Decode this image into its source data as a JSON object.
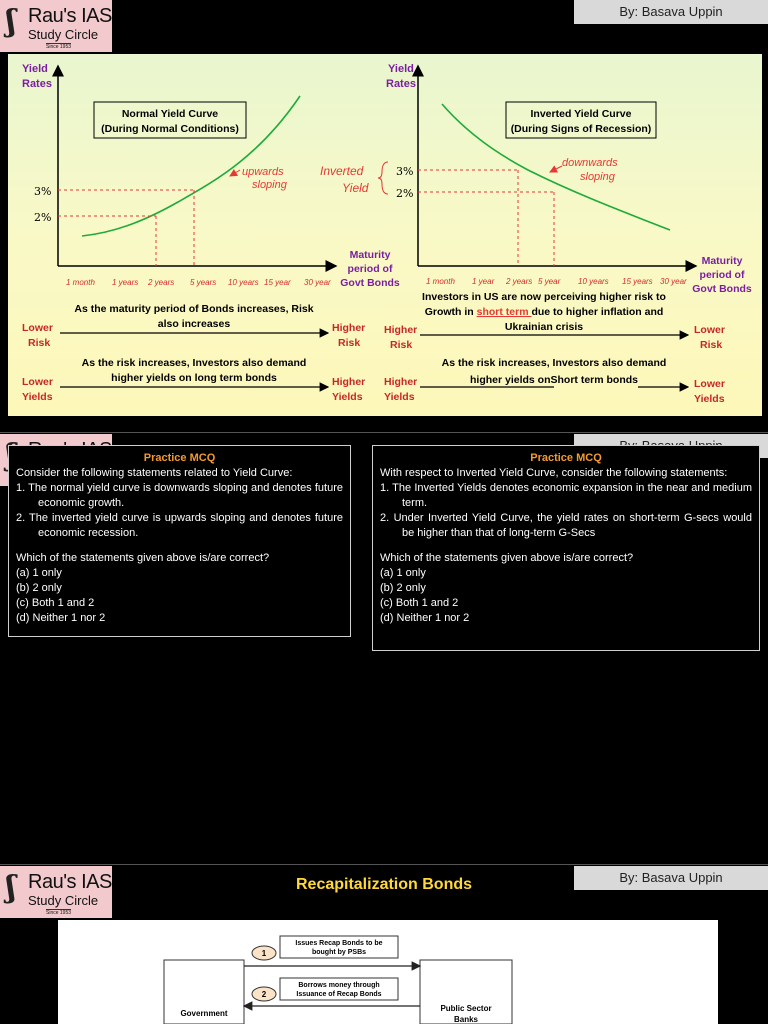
{
  "logo": {
    "mark": "ʃ",
    "name": "Rau's IAS",
    "sub": "Study Circle",
    "since": "Since 1953"
  },
  "author": "By: Basava Uppin",
  "normal_curve": {
    "ylabel_1": "Yield",
    "ylabel_2": "Rates",
    "title_1": "Normal Yield Curve",
    "title_2": "(During Normal Conditions)",
    "annot_1": "upwards",
    "annot_2": "sloping",
    "tick_3": "3%",
    "tick_2": "2%",
    "xticks": [
      "1 month",
      "1 years",
      "2 years",
      "5 years",
      "10 years",
      "15 year",
      "30 year"
    ],
    "xlabel_1": "Maturity",
    "xlabel_2": "period of",
    "xlabel_3": "Govt Bonds",
    "text_1a": "As the maturity period of Bonds increases, Risk",
    "text_1b": "also increases",
    "left_1a": "Lower",
    "left_1b": "Risk",
    "right_1a": "Higher",
    "right_1b": "Risk",
    "text_2a": "As the risk increases, Investors also demand",
    "text_2b": "higher yields on long term bonds",
    "left_2a": "Lower",
    "left_2b": "Yields",
    "right_2a": "Higher",
    "right_2b": "Yields"
  },
  "inverted_curve": {
    "ylabel_1": "Yield",
    "ylabel_2": "Rates",
    "title_1": "Inverted Yield Curve",
    "title_2": "(During Signs of Recession)",
    "annot_1": "downwards",
    "annot_2": "sloping",
    "side_1": "Inverted",
    "side_2": "Yield",
    "tick_3": "3%",
    "tick_2": "2%",
    "xticks": [
      "1 month",
      "1 year",
      "2 years",
      "5 year",
      "10 years",
      "15 years",
      "30 year"
    ],
    "xlabel_1": "Maturity",
    "xlabel_2": "period of",
    "xlabel_3": "Govt Bonds",
    "text_1a": "Investors in US are now perceiving higher risk to",
    "text_1b_pre": "Growth in ",
    "text_1b_link": "short term ",
    "text_1b_post": "due to higher inflation and",
    "text_1c": "Ukrainian crisis",
    "left_1a": "Higher",
    "left_1b": "Risk",
    "right_1a": "Lower",
    "right_1b": "Risk",
    "text_2a": "As the risk increases, Investors also demand",
    "text_2b": "higher yields onShort term bonds",
    "left_2a": "Higher",
    "left_2b": "Yields",
    "right_2a": "Lower",
    "right_2b": "Yields"
  },
  "mcq_left": {
    "title": "Practice MCQ",
    "intro": "Consider the following statements related to Yield Curve:",
    "statements": [
      "1.   The normal yield curve is downwards sloping and denotes future economic growth.",
      "2.   The inverted yield curve is upwards sloping and denotes future economic recession."
    ],
    "question": "Which of the statements given above is/are correct?",
    "options": [
      "(a) 1 only",
      "(b) 2 only",
      "(c) Both 1 and 2",
      "(d) Neither 1 nor 2"
    ]
  },
  "mcq_right": {
    "title": "Practice MCQ",
    "intro": "With respect to Inverted Yield Curve, consider the following statements:",
    "statements": [
      "1.   The Inverted Yields denotes economic expansion in the near and medium term.",
      "2.   Under Inverted Yield Curve, the yield rates on short-term G-secs would be higher than that of long-term G-Secs"
    ],
    "question": "Which of the statements given above is/are correct?",
    "options": [
      "(a) 1 only",
      "(b) 2 only",
      "(c) Both 1 and 2",
      "(d) Neither 1 nor 2"
    ]
  },
  "recap": {
    "title": "Recapitalization Bonds",
    "step1_num": "1",
    "step1_a": "Issues Recap Bonds to be",
    "step1_b": "bought by PSBs",
    "step2_num": "2",
    "step2_a": "Borrows money through",
    "step2_b": "Issuance of Recap Bonds",
    "left_box": "Government",
    "right_box_a": "Public Sector",
    "right_box_b": "Banks"
  }
}
